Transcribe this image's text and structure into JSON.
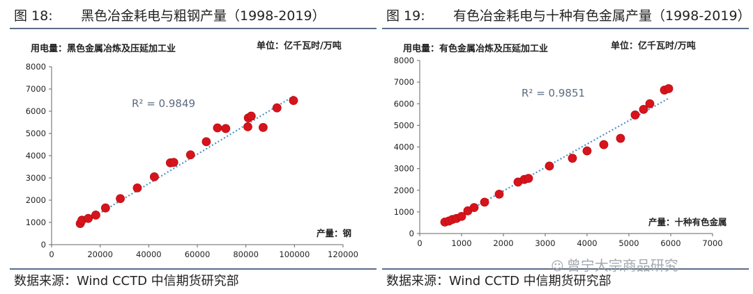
{
  "chart_data": [
    {
      "type": "scatter",
      "figure_label": "图 18:",
      "title": "黑色冶金耗电与粗钢产量（1998-2019）",
      "ylabel": "用电量：黑色金属冶炼及压延加工业",
      "unit": "单位：亿千瓦时/万吨",
      "xlabel": "产量：钢",
      "xlim": [
        0,
        120000
      ],
      "ylim": [
        0,
        8000
      ],
      "xticks": [
        "0",
        "20000",
        "40000",
        "60000",
        "80000",
        "100000",
        "120000"
      ],
      "yticks": [
        "0",
        "1000",
        "2000",
        "3000",
        "4000",
        "5000",
        "6000",
        "7000",
        "8000"
      ],
      "r2_label": "R² = 0.9849",
      "trendline": {
        "x": [
          12000,
          100000
        ],
        "y": [
          900,
          6700
        ]
      },
      "points": [
        [
          11800,
          950
        ],
        [
          12500,
          1100
        ],
        [
          15100,
          1180
        ],
        [
          18200,
          1330
        ],
        [
          22200,
          1650
        ],
        [
          28300,
          2070
        ],
        [
          35300,
          2550
        ],
        [
          42300,
          3050
        ],
        [
          48900,
          3680
        ],
        [
          50300,
          3700
        ],
        [
          57200,
          4040
        ],
        [
          63700,
          4630
        ],
        [
          68300,
          5250
        ],
        [
          71700,
          5220
        ],
        [
          80800,
          5300
        ],
        [
          81000,
          5700
        ],
        [
          82200,
          5780
        ],
        [
          87100,
          5270
        ],
        [
          92800,
          6150
        ],
        [
          99600,
          6480
        ]
      ],
      "source": "数据来源：Wind CCTD 中信期货研究部"
    },
    {
      "type": "scatter",
      "figure_label": "图 19:",
      "title": "有色冶金耗电与十种有色金属产量（1998-2019）",
      "ylabel": "用电量：有色金属冶炼及压延加工业",
      "unit": "单位：亿千瓦时/万吨",
      "xlabel": "产量：十种有色金属",
      "xlim": [
        0,
        7000
      ],
      "ylim": [
        0,
        8000
      ],
      "xticks": [
        "0",
        "1000",
        "2000",
        "3000",
        "4000",
        "5000",
        "6000",
        "7000"
      ],
      "yticks": [
        "0",
        "1000",
        "2000",
        "3000",
        "4000",
        "5000",
        "6000",
        "7000",
        "8000"
      ],
      "r2_label": "R² = 0.9851",
      "trendline": {
        "x": [
          600,
          5950
        ],
        "y": [
          450,
          6250
        ]
      },
      "points": [
        [
          600,
          530
        ],
        [
          700,
          580
        ],
        [
          780,
          650
        ],
        [
          880,
          700
        ],
        [
          1000,
          790
        ],
        [
          1150,
          1050
        ],
        [
          1300,
          1200
        ],
        [
          1550,
          1450
        ],
        [
          1900,
          1820
        ],
        [
          2350,
          2380
        ],
        [
          2500,
          2500
        ],
        [
          2600,
          2550
        ],
        [
          3100,
          3120
        ],
        [
          3650,
          3480
        ],
        [
          4000,
          3820
        ],
        [
          4400,
          4110
        ],
        [
          4800,
          4400
        ],
        [
          5150,
          5480
        ],
        [
          5350,
          5740
        ],
        [
          5500,
          6000
        ],
        [
          5850,
          6630
        ],
        [
          5950,
          6700
        ]
      ],
      "source": "数据来源：Wind CCTD 中信期货研究部"
    }
  ],
  "watermark": {
    "icon": "wechat-icon",
    "glyph": "☺",
    "text": "曾宁大宗商品研究"
  }
}
